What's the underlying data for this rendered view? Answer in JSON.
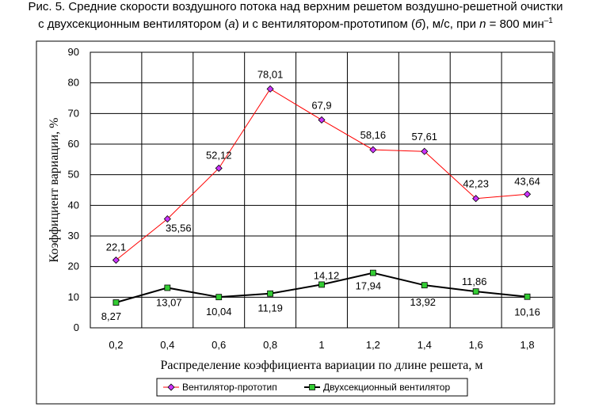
{
  "caption": {
    "line1": "Рис. 5. Средние скорости воздушного потока над верхним решетом воздушно-решетной очистки",
    "line2_a": "с двухсекционным вентилятором (",
    "line2_a_italic": "а",
    "line2_b": ") и с вентилятором-прототипом (",
    "line2_b_italic": "б",
    "line2_c": "), м/с, при ",
    "line2_n": "n",
    "line2_d": " = 800 мин",
    "line2_sup": "–1"
  },
  "chart_data": {
    "type": "line",
    "categories": [
      "0,2",
      "0,4",
      "0,6",
      "0,8",
      "1",
      "1,2",
      "1,4",
      "1,6",
      "1,8"
    ],
    "xlabel": "Распределение коэффициента вариации по длине решета, м",
    "ylabel": "Коэффициент вариации, %",
    "ylim": [
      0,
      90
    ],
    "yticks": [
      0,
      10,
      20,
      30,
      40,
      50,
      60,
      70,
      80,
      90
    ],
    "grid": true,
    "legend_position": "bottom",
    "series": [
      {
        "name": "Вентилятор-прототип",
        "color": "#ff0000",
        "marker_color": "#cc33ff",
        "marker": "diamond",
        "values": [
          22.1,
          35.56,
          52.12,
          78.01,
          67.9,
          58.16,
          57.61,
          42.23,
          43.64
        ],
        "labels": [
          "22,1",
          "35,56",
          "52,12",
          "78,01",
          "67,9",
          "58,16",
          "57,61",
          "42,23",
          "43,64"
        ]
      },
      {
        "name": "Двухсекционный вентилятор",
        "color": "#000000",
        "marker_color": "#33cc33",
        "marker": "square",
        "values": [
          8.27,
          13.07,
          10.04,
          11.19,
          14.12,
          17.94,
          13.92,
          11.86,
          10.16
        ],
        "labels": [
          "8,27",
          "13,07",
          "10,04",
          "11,19",
          "14,12",
          "17,94",
          "13,92",
          "11,86",
          "10,16"
        ]
      }
    ]
  }
}
